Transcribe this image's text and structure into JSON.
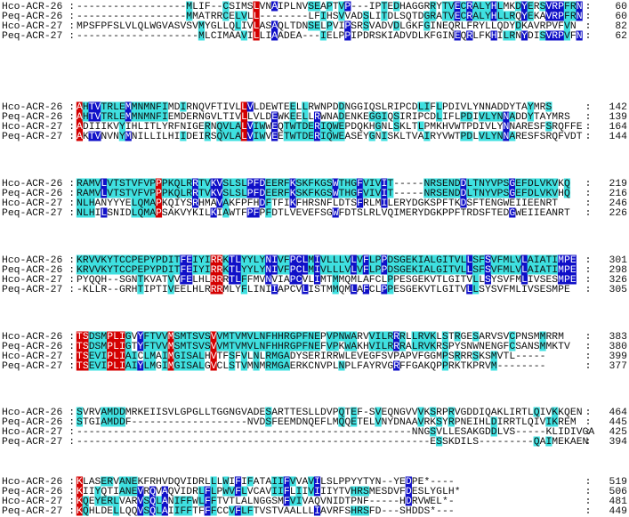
{
  "blocks": [
    {
      "rows": [
        {
          "name": "Hco-ACR-26 :",
          "sequence": "------------------MLIF--CSIMSLVNAIPLNVSEAPTVP---IPTEDHAGGRRYTVECRALYHLMKDYERSVRPFRN",
          "end": 60
        },
        {
          "name": "Peq-ACR-26 :",
          "sequence": "------------------MMATRRCELVLL--------LFIHSVVADSLITDLSQTDGRATVECRALYHLLRQYEKAVRPFRN",
          "end": 60
        },
        {
          "name": "Hco-ACR-27 :",
          "sequence": "MPSFPFSLVLQLWGVASVSVMYGLLQLIVLASAQLTDNSELPVIPSRSVADVDLGKFGINEQRLFRYLLQDYDKAVRPVFVN",
          "end": 82
        },
        {
          "name": "Peq-ACR-27 :",
          "sequence": "--------------------MLCIMAAVILLIAADEA---IELPPIPDRSKIADVDLKFGINEQRLFKHILRNYDISVRPVFN",
          "end": 62
        }
      ]
    },
    {
      "rows": [
        {
          "name": "Hco-ACR-26 :",
          "sequence": "AHTVTRLEMMNMNFIMDIRNQVFTIVLLVLDEWTEELLRWNPDDNGGIQSLRIPCDLIFLPDIVLYNNADDYTAYMRS",
          "end": 142
        },
        {
          "name": "Peq-ACR-26 :",
          "sequence": "AHTVTRLEMMNMNFIEMDERNGVLTIVLLVLDEWKEELLRWNADENKEGGIQSIRIPCDLIFLPDIVLYNNADDYTAYMRS",
          "end": 139
        },
        {
          "name": "Hco-ACR-27 :",
          "sequence": "ADIIIKVYIHLITLYRFNIGERNQVLALVIWWEQTWTDERIQWEPDQKHGNLSKLTLPMKHVWTPDIVLYNNARESFSRQFFE",
          "end": 164
        },
        {
          "name": "Peq-ACR-27 :",
          "sequence": "AKTVNVNYMNILLILHIIDEIRSQVLALVIWVEETWTDERIQWEASEYGNISKLTVAIRYVWTPDLVLYNNARESFSRQFVDT",
          "end": 144
        }
      ]
    },
    {
      "rows": [
        {
          "name": "Hco-ACR-26 :",
          "sequence": "RAMVLVTSTVFVPPPKQLRRTVKVSLSLPFDEERFKSKFKGSWTHGFVIVIT-----NRSENDDLTNYVPSGEFDLVKVKQ",
          "end": 219
        },
        {
          "name": "Peq-ACR-26 :",
          "sequence": "RAMVLVTSTVFVPPPKQLRRTVKVSLSLPFDEERFKSKFKGSWTHGFVIVIT-----NRSENDDLTNYVPSGEFDLVKVHQ",
          "end": 216
        },
        {
          "name": "Hco-ACR-27 :",
          "sequence": "NLHANYYYELQMAPKQIYSRHMAVAKFPFHDFTFIKFHRSNFLDTSFRLMILERYDGKSPFTKDSFTENGWEIIEENRT",
          "end": 246
        },
        {
          "name": "Peq-ACR-27 :",
          "sequence": "NLHILSNIDLQMAPSAKVYKILKIAWTFPFPFDTLVEVEFSGWFDTSLRLVQIMERYDGKPPFTRDSFTEDGWEIIEANRT",
          "end": 226
        }
      ]
    },
    {
      "rows": [
        {
          "name": "Hco-ACR-26 :",
          "sequence": "KRVVKYTCCPEPYPDITFEIYIRRKTLYYLYNIVFPCLMIVLLLVLVFLPPDSGEKIALGITVLLSFSVFMLVLAIATIMPE",
          "end": 301
        },
        {
          "name": "Peq-ACR-26 :",
          "sequence": "KRVVKYTCCPEPYPDITFEIYIRRKTLYYLYNIVFPCLMIVLLLVLVFLPPDSGEKIALGITVLLSFSVFMLVLAIATIMPE",
          "end": 298
        },
        {
          "name": "Hco-ACR-27 :",
          "sequence": "PYQQH--SGNTKVATVVFELHLRRRTLFFMVNVIAPCVLIMTMMQMLAFCLPPESGEKVTLGITVLLSYSVFMLIVSESMPE",
          "end": 326
        },
        {
          "name": "Peq-ACR-27 :",
          "sequence": "-KLLR--GRHTIPTIVEELHLRRRMLYFLINIIAPCVLISTMMQMLAFCLPPESGEKVTLGITVLLSYSVFMLIVSESMPE",
          "end": 305
        }
      ]
    },
    {
      "rows": [
        {
          "name": "Hco-ACR-26 :",
          "sequence": "TSDSMPLIGVYFTVVMSMTSVSVVMTVMVLNFHHRGPFNEPVPNWARVVILRRRLLRVKLSTRGESARVSVCPNSMMRRM",
          "end": 383
        },
        {
          "name": "Peq-ACR-26 :",
          "sequence": "TSDSMPLIGTYFTVVMSMTSVSVVMTVMVLNFHHRGPFNEFVPKWAKHVILRRRALRVKRSPYSNWNENGFCSANSMMKTV",
          "end": 380
        },
        {
          "name": "Hco-ACR-27 :",
          "sequence": "TSEVIPLIAICLMAIMGISALHVTFSFVLNLRMGADYSERIRRWLEVEGFSVPAPVFGGMPSRRRSKSMVTL-----",
          "end": 399
        },
        {
          "name": "Peq-ACR-27 :",
          "sequence": "TSEVIPLIAIYLMGIMGISALGVCLSTVMNMRMGAERKCNVPLNPLFAYRVGRFFGAKQPPRKTKPRVM--------",
          "end": 377
        }
      ]
    },
    {
      "rows": [
        {
          "name": "Hco-ACR-26 :",
          "sequence": "SVRVAMDDMRKEIISVLGPGLLTGGNGVADESARTTESLLDVPQTEF-SVEQNGVVVKSRPRVGDDIQAKLIRTLQIVKKQEN",
          "end": 464
        },
        {
          "name": "Peq-ACR-26 :",
          "sequence": "STGIAMDDF-------------------NVDSFEEMDNQEFLMQQETELVNYDNAAVRKSYRPNEIHLDIRRTLQIVIKREM",
          "end": 445
        },
        {
          "name": "Hco-ACR-27 :",
          "sequence": "-------------------------------------------------------NNGSVLLESAKGDDLVS-----KLIDIVGA",
          "end": 425
        },
        {
          "name": "Peq-ACR-27 :",
          "sequence": "----------------------------------------------------------ESSKDILS---------QAIMEKAEN",
          "end": 394
        }
      ]
    },
    {
      "rows": [
        {
          "name": "Hco-ACR-26 :",
          "sequence": "KLASERVANEKFRHVDQVIDRLLLWIFIFATAIIFVVAVILSLPPYYTYN--YEDPE*----",
          "end": 519
        },
        {
          "name": "Peq-ACR-26 :",
          "sequence": "KIIYQTIANEVRQVAQVIDRLFLPWVFLVCAVIIFLIIVIIIYTVHRSMESDVFDESLYGLH*",
          "end": 506
        },
        {
          "name": "Hco-ACR-27 :",
          "sequence": "KQEYERLVARVSQLANIFFWLFFTVTLALNGGSMFVIVAQVNIDTPNF-----HDRVWEL*-",
          "end": 481
        },
        {
          "name": "Peq-ACR-27 :",
          "sequence": "KQHLDELLQQVSQLAIIFFTFFFCCVFLFTVSTVAALLLIAVRFSHRSFD---SHDDS*---",
          "end": 449
        }
      ]
    }
  ]
}
